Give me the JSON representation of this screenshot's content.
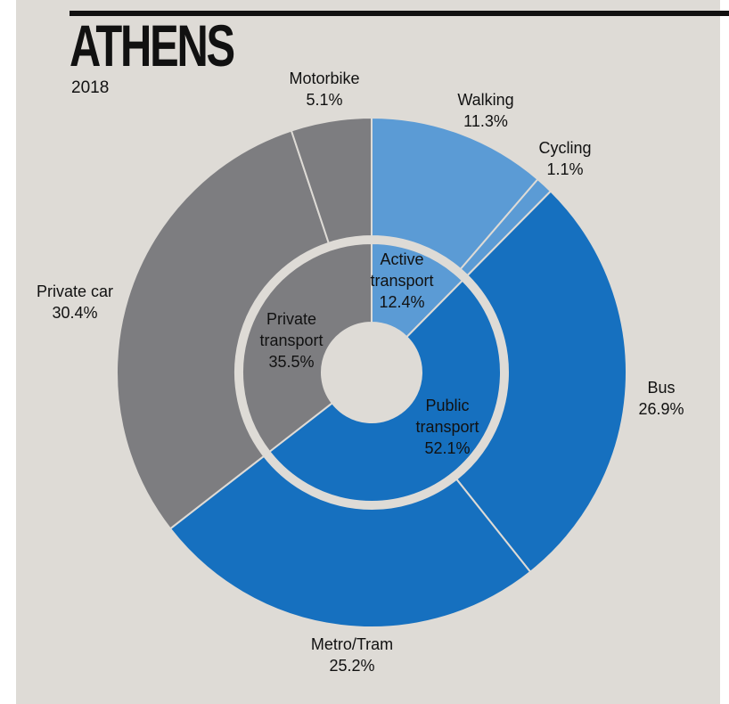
{
  "header": {
    "title": "ATHENS",
    "subtitle": "2018"
  },
  "colors": {
    "background": "#dedbd6",
    "active": "#5b9bd5",
    "public": "#1670bf",
    "private": "#7d7d80",
    "separator": "#dedbd6"
  },
  "chart_data": {
    "type": "pie",
    "subtype": "nested-donut",
    "inner_ring": [
      {
        "label": [
          "Active",
          "transport",
          "12.4%"
        ],
        "value": 12.4,
        "group": "active"
      },
      {
        "label": [
          "Public",
          "transport",
          "52.1%"
        ],
        "value": 52.1,
        "group": "public"
      },
      {
        "label": [
          "Private",
          "transport",
          "35.5%"
        ],
        "value": 35.5,
        "group": "private"
      }
    ],
    "outer_ring": [
      {
        "label": [
          "Walking",
          "11.3%"
        ],
        "value": 11.3,
        "group": "active"
      },
      {
        "label": [
          "Cycling",
          "1.1%"
        ],
        "value": 1.1,
        "group": "active"
      },
      {
        "label": [
          "Bus",
          "26.9%"
        ],
        "value": 26.9,
        "group": "public"
      },
      {
        "label": [
          "Metro/Tram",
          "25.2%"
        ],
        "value": 25.2,
        "group": "public"
      },
      {
        "label": [
          "Private car",
          "30.4%"
        ],
        "value": 30.4,
        "group": "private"
      },
      {
        "label": [
          "Motorbike",
          "5.1%"
        ],
        "value": 5.1,
        "group": "private"
      }
    ]
  }
}
